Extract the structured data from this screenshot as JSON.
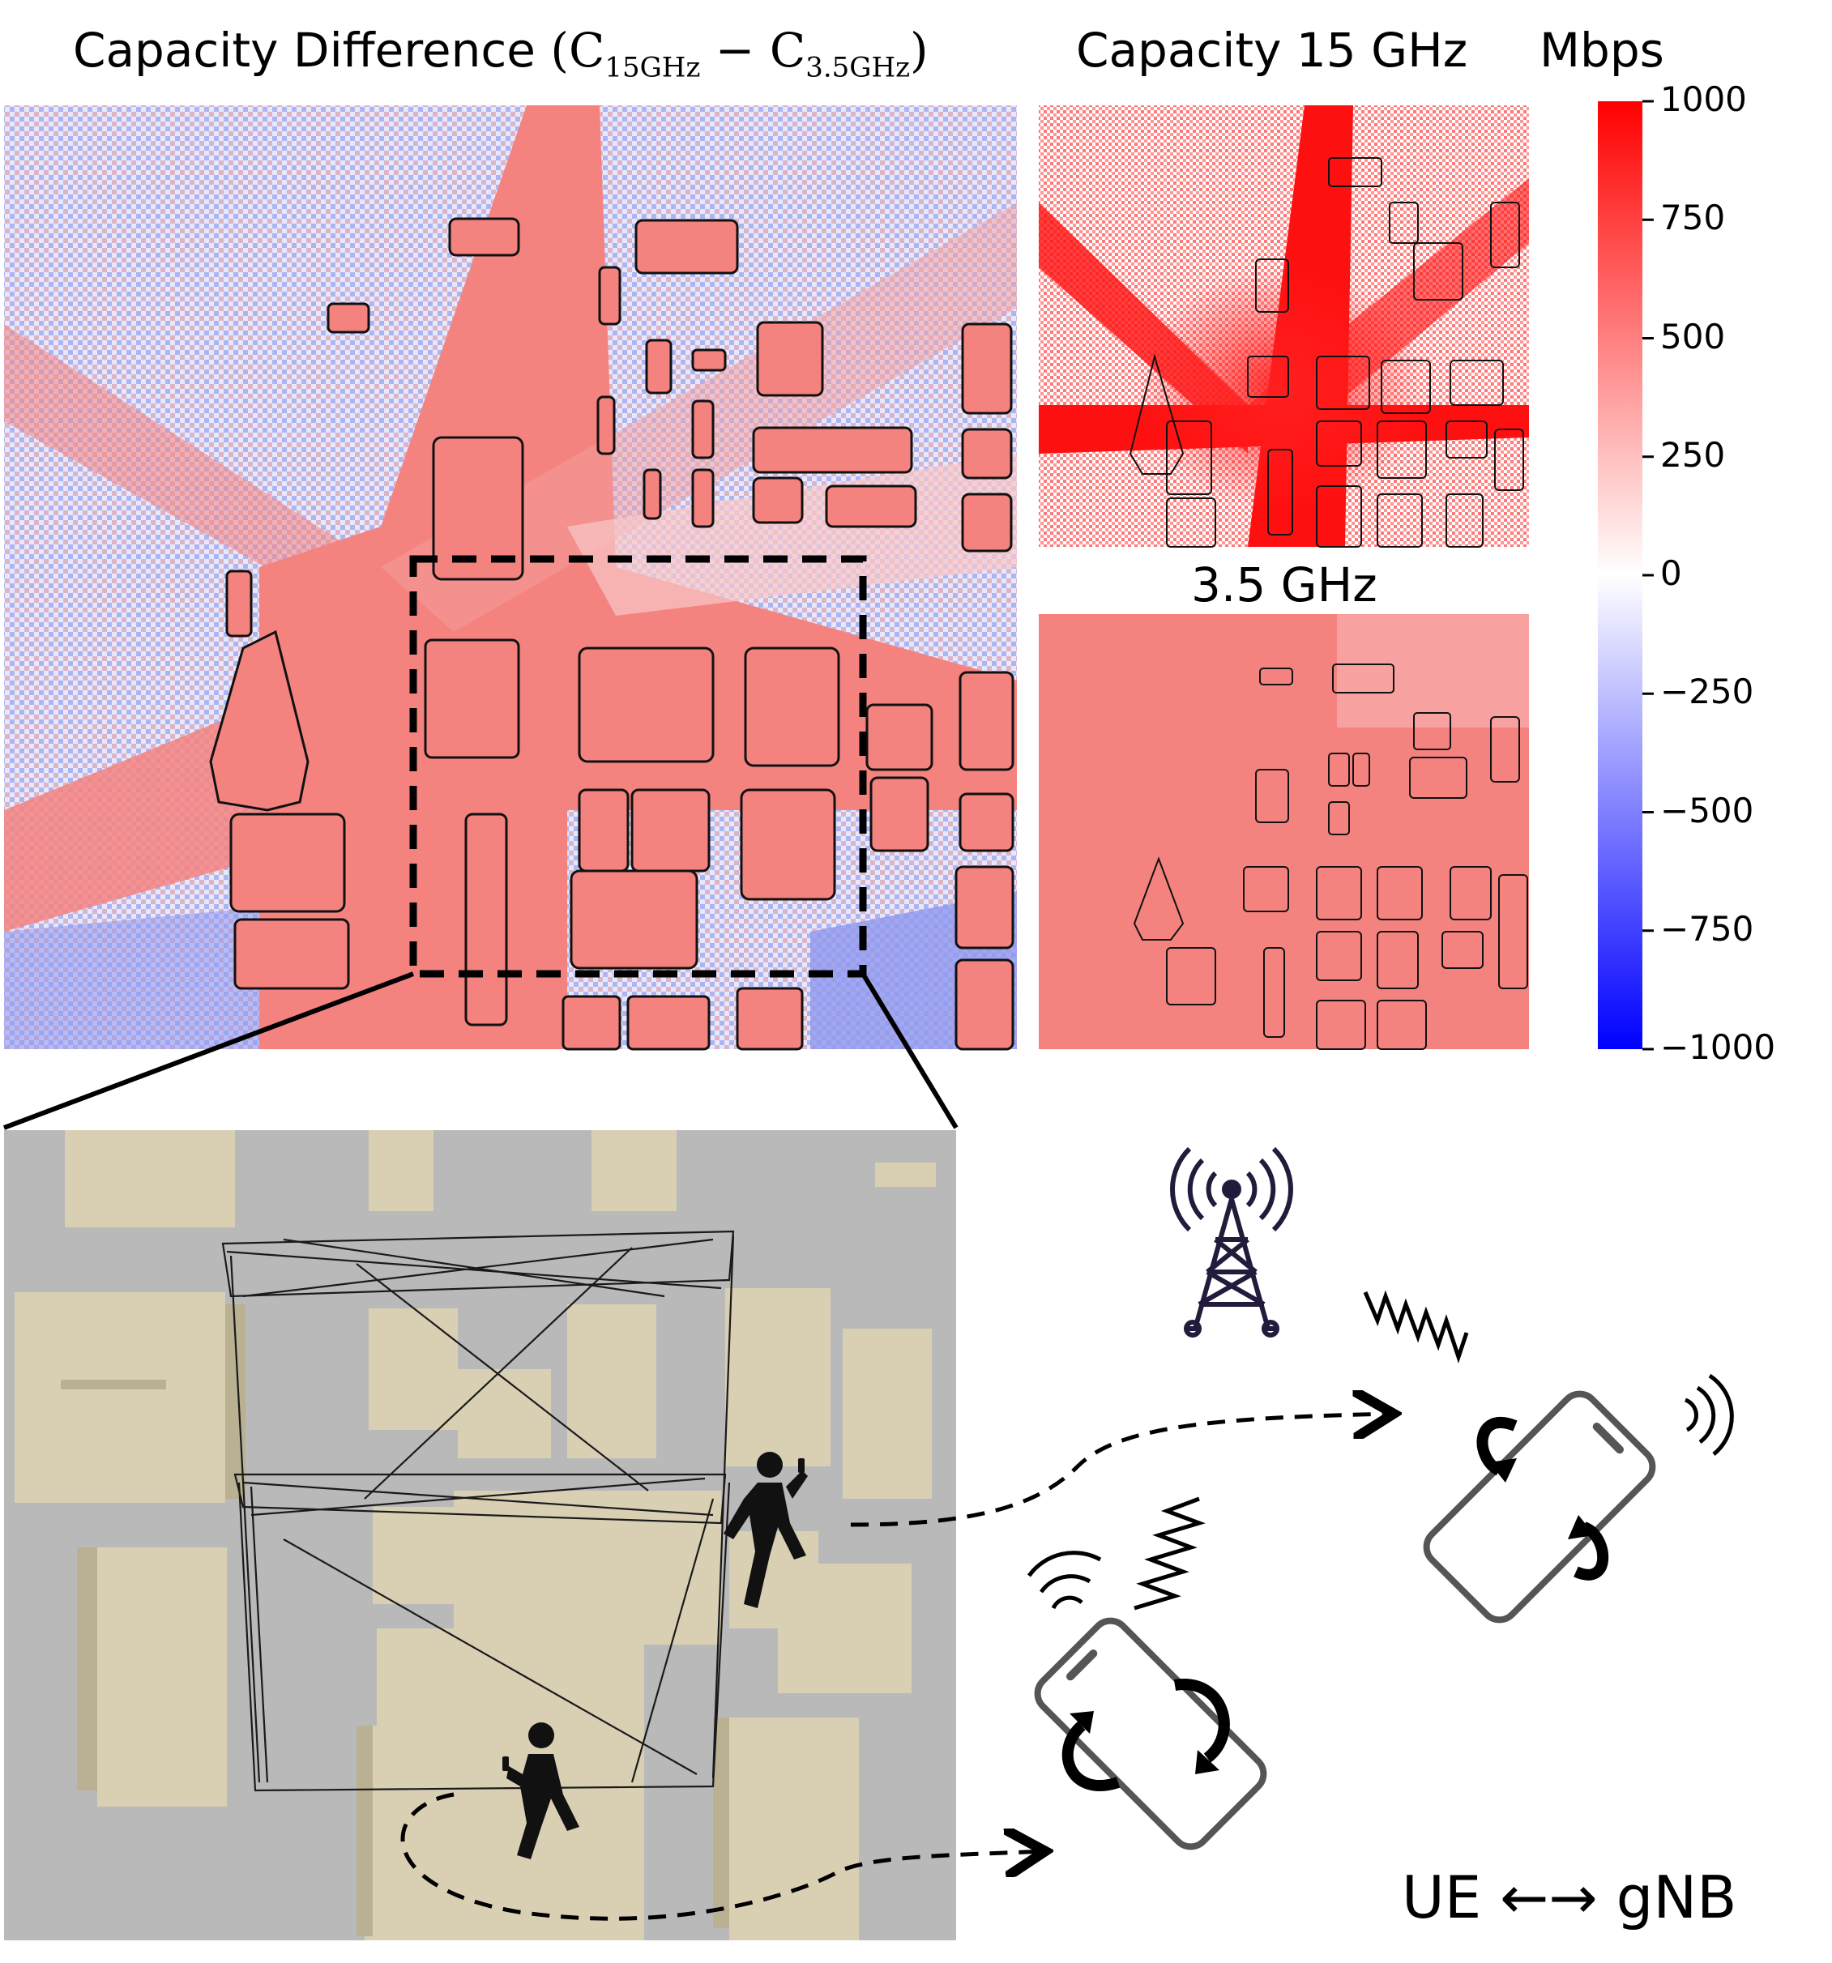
{
  "titles": {
    "main_prefix": "Capacity Difference ",
    "main_open": "(C",
    "main_sub1": "15GHz",
    "main_minus": " − C",
    "main_sub2": "3.5GHz",
    "main_close": ")",
    "cap15": "Capacity 15 GHz",
    "cap35": "3.5 GHz",
    "units": "Mbps"
  },
  "colorbar": {
    "ticks": [
      "1000",
      "750",
      "500",
      "250",
      "0",
      "−250",
      "−500",
      "−750",
      "−1000"
    ],
    "colors": {
      "high": "#ff0000",
      "mid": "#ffffff",
      "low": "#0000ff"
    }
  },
  "legend": {
    "link_label": "UE ←→ gNB"
  },
  "colors": {
    "building": "#d9d0b4",
    "building_shadow": "#b9b192",
    "ground": "#b9b9b9",
    "heat_red": "#f4837f",
    "heat_blue": "#8f97ef"
  },
  "icons": [
    "cell-tower-icon",
    "smartphone-icon",
    "pedestrian-icon",
    "rotation-arrow-icon",
    "signal-wave-icon"
  ]
}
